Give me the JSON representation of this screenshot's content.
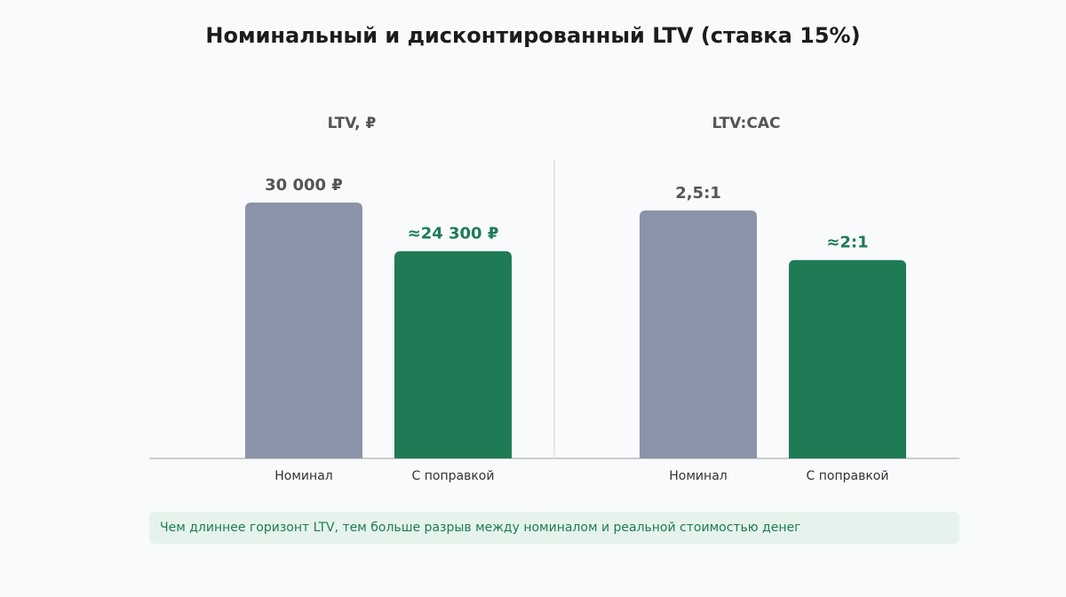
{
  "title": "Номинальный и дисконтированный LTV (ставка 15%)",
  "note": "Чем длиннее горизонт LTV, тем больше разрыв между номиналом и реальной стоимостью денег",
  "colors": {
    "nominal": "#8a93a7",
    "adjusted": "#1e7b55",
    "nominal_label": "#555555",
    "adjusted_label": "#1e7b55",
    "axis": "#cccccc",
    "divider": "#e6e6e6"
  },
  "chart_data": [
    {
      "type": "bar",
      "title": "LTV, ₽",
      "categories": [
        "Номинал",
        "С поправкой"
      ],
      "values": [
        30000,
        24300
      ],
      "value_labels": [
        "30 000 ₽",
        "≈24 300 ₽"
      ],
      "ylim": [
        0,
        30000
      ]
    },
    {
      "type": "bar",
      "title": "LTV:CAC",
      "categories": [
        "Номинал",
        "С поправкой"
      ],
      "values": [
        2.5,
        2
      ],
      "value_labels": [
        "2,5:1",
        "≈2:1"
      ],
      "ylim": [
        0,
        2.58
      ]
    }
  ]
}
